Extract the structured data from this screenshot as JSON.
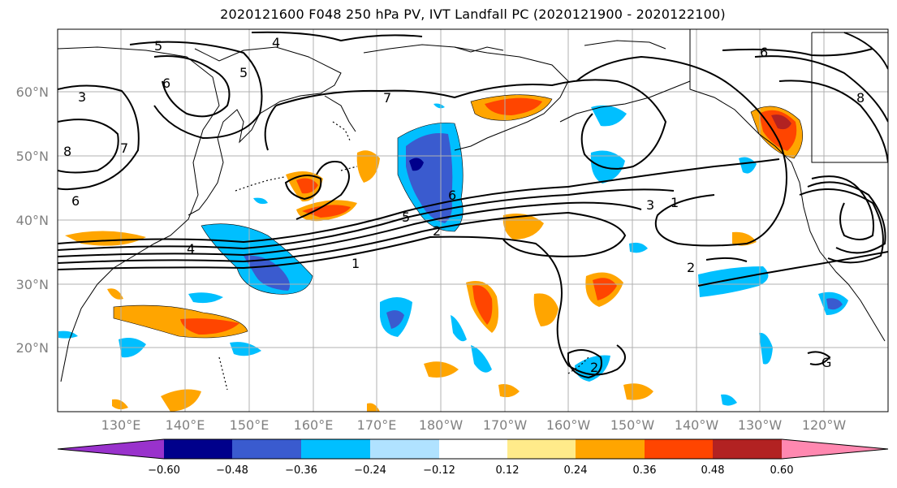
{
  "title": "2020121600 F048 250 hPa PV, IVT Landfall PC (2020121900 - 2020122100)",
  "map": {
    "lat_labels": [
      "60°N",
      "50°N",
      "40°N",
      "30°N",
      "20°N"
    ],
    "lon_labels": [
      "130°E",
      "140°E",
      "150°E",
      "160°E",
      "170°E",
      "180°W",
      "170°W",
      "160°W",
      "150°W",
      "140°W",
      "130°W",
      "120°W"
    ],
    "contour_labels": [
      "5",
      "4",
      "6",
      "5",
      "3",
      "8",
      "7",
      "6",
      "4",
      "7",
      "6",
      "5",
      "2",
      "1",
      "3",
      "1",
      "6",
      "8",
      "2",
      "2",
      "G"
    ]
  },
  "colorbar": {
    "colors": [
      "#9932CC",
      "#00008B",
      "#3A5BCF",
      "#00BFFF",
      "#B0E2FF",
      "#FFFFFF",
      "#FFEB8A",
      "#FFA500",
      "#FF4500",
      "#B22222",
      "#FF88B0"
    ],
    "tick_labels": [
      "−0.60",
      "−0.48",
      "−0.36",
      "−0.24",
      "−0.12",
      "0.12",
      "0.24",
      "0.36",
      "0.48",
      "0.60"
    ]
  }
}
